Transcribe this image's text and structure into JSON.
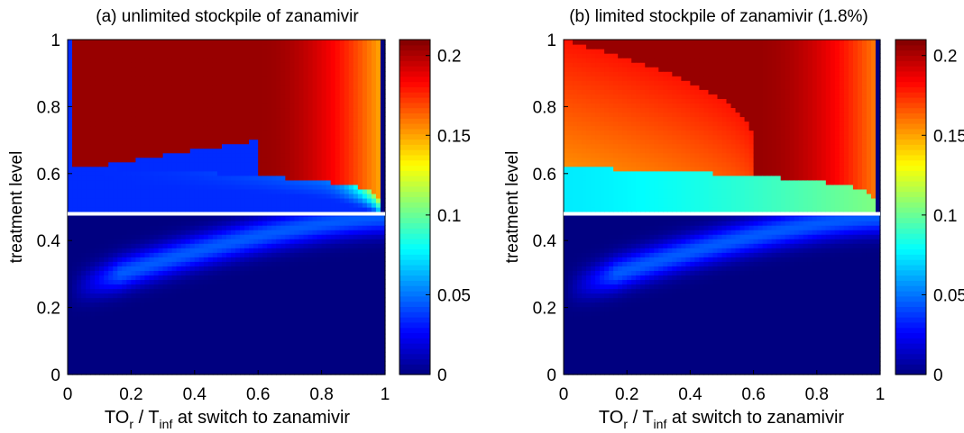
{
  "chart_data": [
    {
      "type": "heatmap",
      "title": "(a) unlimited stockpile of zanamivir",
      "xlabel_main": "TO",
      "xlabel_sub1": "r",
      "xlabel_mid": " / T",
      "xlabel_sub2": "inf",
      "xlabel_tail": " at switch to zanamivir",
      "ylabel": "treatment level",
      "xlim": [
        0,
        1
      ],
      "ylim": [
        0,
        1
      ],
      "xticks": [
        "0",
        "0.2",
        "0.4",
        "0.6",
        "0.8",
        "1"
      ],
      "yticks": [
        "0",
        "0.2",
        "0.4",
        "0.6",
        "0.8",
        "1"
      ],
      "colorbar": {
        "min": 0,
        "max": 0.21,
        "ticks": [
          "0",
          "0.05",
          "0.1",
          "0.15",
          "0.2"
        ]
      },
      "reference_line_y": 0.48,
      "regions": {
        "low_level_value": 0.0,
        "upper_band_value": 0.035,
        "peak_value": 0.205,
        "boundary_level": 0.62
      }
    },
    {
      "type": "heatmap",
      "title": "(b) limited stockpile of zanamivir (1.8%)",
      "xlabel_main": "TO",
      "xlabel_sub1": "r",
      "xlabel_mid": " / T",
      "xlabel_sub2": "inf",
      "xlabel_tail": " at switch to zanamivir",
      "ylabel": "treatment level",
      "xlim": [
        0,
        1
      ],
      "ylim": [
        0,
        1
      ],
      "xticks": [
        "0",
        "0.2",
        "0.4",
        "0.6",
        "0.8",
        "1"
      ],
      "yticks": [
        "0",
        "0.2",
        "0.4",
        "0.6",
        "0.8",
        "1"
      ],
      "colorbar": {
        "min": 0,
        "max": 0.21,
        "ticks": [
          "0",
          "0.05",
          "0.1",
          "0.15",
          "0.2"
        ]
      },
      "reference_line_y": 0.48,
      "regions": {
        "low_level_value": 0.0,
        "upper_band_value": 0.16,
        "mid_band_value": 0.075,
        "peak_value": 0.205,
        "boundary_level": 0.62
      }
    }
  ]
}
